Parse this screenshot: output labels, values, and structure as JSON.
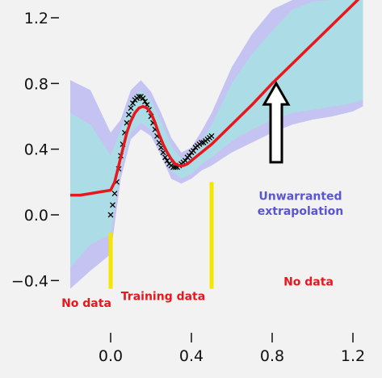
{
  "chart_data": {
    "type": "line",
    "title": "",
    "xlabel": "",
    "ylabel": "",
    "xlim": [
      -0.2,
      1.25
    ],
    "ylim": [
      -0.45,
      1.22
    ],
    "x_ticks": [
      0.0,
      0.4,
      0.8,
      1.2
    ],
    "x_tick_labels": [
      "0.0",
      "0.4",
      "0.8",
      "1.2"
    ],
    "y_ticks": [
      -0.4,
      0.0,
      0.4,
      0.8,
      1.2
    ],
    "y_tick_labels": [
      "−0.4",
      "0.0",
      "0.4",
      "0.8",
      "1.2"
    ],
    "grid": false,
    "series": [
      {
        "role": "observations",
        "marker": "x",
        "color": "#000000",
        "x": [
          0.0,
          0.01,
          0.02,
          0.03,
          0.04,
          0.05,
          0.06,
          0.07,
          0.08,
          0.09,
          0.1,
          0.11,
          0.12,
          0.13,
          0.14,
          0.15,
          0.16,
          0.17,
          0.18,
          0.19,
          0.2,
          0.21,
          0.22,
          0.23,
          0.24,
          0.25,
          0.26,
          0.27,
          0.28,
          0.29,
          0.3,
          0.31,
          0.32,
          0.33,
          0.34,
          0.35,
          0.36,
          0.37,
          0.38,
          0.39,
          0.4,
          0.41,
          0.42,
          0.43,
          0.44,
          0.45,
          0.46,
          0.47,
          0.48,
          0.49,
          0.5
        ],
        "y": [
          0.0,
          0.06,
          0.13,
          0.2,
          0.28,
          0.36,
          0.43,
          0.5,
          0.56,
          0.61,
          0.65,
          0.68,
          0.7,
          0.71,
          0.72,
          0.72,
          0.71,
          0.69,
          0.67,
          0.64,
          0.6,
          0.56,
          0.52,
          0.48,
          0.44,
          0.41,
          0.38,
          0.35,
          0.33,
          0.31,
          0.3,
          0.29,
          0.29,
          0.29,
          0.3,
          0.31,
          0.32,
          0.33,
          0.35,
          0.36,
          0.38,
          0.39,
          0.41,
          0.42,
          0.43,
          0.44,
          0.44,
          0.45,
          0.46,
          0.47,
          0.48
        ]
      },
      {
        "role": "predictive mean",
        "color": "#e8171c",
        "x": [
          -0.2,
          -0.15,
          -0.1,
          -0.05,
          0.0,
          0.02,
          0.04,
          0.06,
          0.08,
          0.1,
          0.12,
          0.14,
          0.16,
          0.18,
          0.2,
          0.22,
          0.24,
          0.26,
          0.28,
          0.3,
          0.32,
          0.34,
          0.36,
          0.38,
          0.4,
          0.42,
          0.44,
          0.46,
          0.48,
          0.5,
          0.6,
          0.7,
          0.8,
          0.9,
          1.0,
          1.1,
          1.2,
          1.25
        ],
        "y": [
          0.12,
          0.12,
          0.13,
          0.14,
          0.15,
          0.2,
          0.3,
          0.4,
          0.5,
          0.57,
          0.62,
          0.65,
          0.66,
          0.65,
          0.62,
          0.56,
          0.49,
          0.43,
          0.38,
          0.34,
          0.31,
          0.3,
          0.3,
          0.31,
          0.33,
          0.35,
          0.37,
          0.39,
          0.41,
          0.43,
          0.55,
          0.67,
          0.8,
          0.92,
          1.04,
          1.16,
          1.28,
          1.34
        ]
      },
      {
        "role": "inner uncertainty band",
        "color": "#acdde6",
        "x": [
          -0.2,
          -0.1,
          0.0,
          0.05,
          0.1,
          0.15,
          0.2,
          0.25,
          0.3,
          0.35,
          0.4,
          0.45,
          0.5,
          0.6,
          0.7,
          0.8,
          0.9,
          1.0,
          1.1,
          1.2,
          1.25
        ],
        "upper": [
          0.62,
          0.55,
          0.36,
          0.52,
          0.7,
          0.76,
          0.7,
          0.57,
          0.42,
          0.34,
          0.36,
          0.45,
          0.55,
          0.8,
          0.98,
          1.12,
          1.25,
          1.3,
          1.34,
          1.35,
          1.35
        ],
        "lower": [
          -0.32,
          -0.18,
          -0.12,
          0.28,
          0.5,
          0.56,
          0.52,
          0.4,
          0.27,
          0.22,
          0.25,
          0.31,
          0.35,
          0.45,
          0.52,
          0.58,
          0.62,
          0.64,
          0.66,
          0.68,
          0.7
        ]
      },
      {
        "role": "outer uncertainty band",
        "color": "#c5c3f2",
        "x": [
          -0.2,
          -0.1,
          0.0,
          0.05,
          0.1,
          0.15,
          0.2,
          0.25,
          0.3,
          0.35,
          0.4,
          0.45,
          0.5,
          0.6,
          0.7,
          0.8,
          0.9,
          1.0,
          1.1,
          1.2,
          1.25
        ],
        "upper": [
          0.82,
          0.76,
          0.5,
          0.58,
          0.76,
          0.82,
          0.75,
          0.62,
          0.47,
          0.38,
          0.41,
          0.51,
          0.62,
          0.9,
          1.1,
          1.25,
          1.35,
          1.4,
          1.42,
          1.42,
          1.42
        ],
        "lower": [
          -0.45,
          -0.34,
          -0.24,
          0.22,
          0.46,
          0.52,
          0.48,
          0.36,
          0.22,
          0.19,
          0.22,
          0.27,
          0.3,
          0.38,
          0.44,
          0.5,
          0.55,
          0.58,
          0.6,
          0.63,
          0.66
        ]
      }
    ],
    "vertical_markers": [
      {
        "x": 0.0,
        "y_from": -0.45,
        "y_to": -0.11,
        "color": "#f5e600"
      },
      {
        "x": 0.5,
        "y_from": -0.45,
        "y_to": 0.2,
        "color": "#f5e600"
      }
    ],
    "annotations": [
      {
        "text": "No data",
        "color": "#e8171c",
        "x": -0.12,
        "y": -0.56
      },
      {
        "text": "Training data",
        "color": "#e8171c",
        "x": 0.26,
        "y": -0.52
      },
      {
        "text": "No data",
        "color": "#e8171c",
        "x": 0.98,
        "y": -0.43
      },
      {
        "text": "Unwarranted",
        "color": "#5b55d0",
        "x": 0.94,
        "y": 0.09
      },
      {
        "text": "extrapolation",
        "color": "#5b55d0",
        "x": 0.94,
        "y": 0.0
      }
    ],
    "arrow": {
      "from_x": 0.82,
      "from_y": 0.32,
      "to_x": 0.82,
      "to_y": 0.8,
      "style": "hollow",
      "color": "#000000"
    }
  }
}
